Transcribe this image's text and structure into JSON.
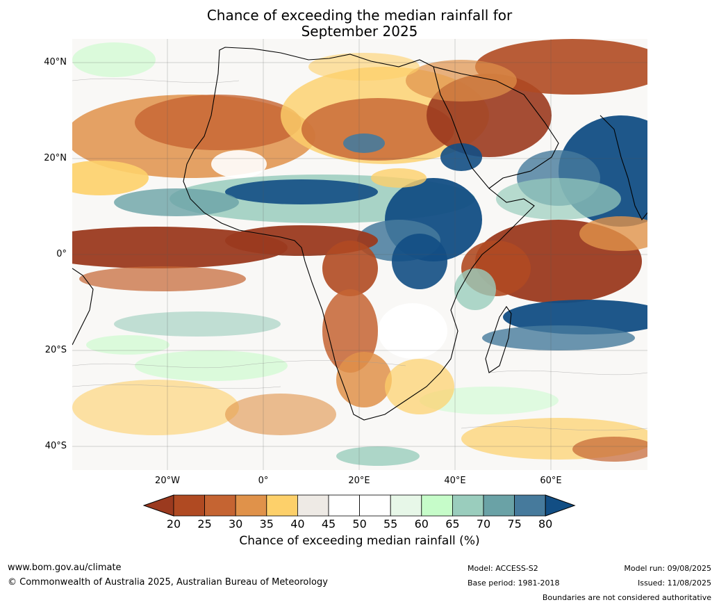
{
  "title_line1": "Chance of exceeding the median rainfall for",
  "title_line2": "September 2025",
  "lat_labels": [
    "40°N",
    "20°N",
    "0°",
    "20°S",
    "40°S"
  ],
  "lon_labels": [
    "20°W",
    "0°",
    "20°E",
    "40°E",
    "60°E"
  ],
  "colorbar": {
    "ticks": [
      "20",
      "25",
      "30",
      "35",
      "40",
      "45",
      "50",
      "55",
      "60",
      "65",
      "70",
      "75",
      "80"
    ],
    "colors": [
      "#9b3a1f",
      "#b04a22",
      "#c56432",
      "#e0924a",
      "#fdd06a",
      "#eeeae5",
      "#ffffff",
      "#ffffff",
      "#e7f7e8",
      "#c6fcc9",
      "#9acdbd",
      "#6aa2a6",
      "#467a9c",
      "#124e84"
    ],
    "label": "Chance of exceeding median rainfall (%)"
  },
  "footer": {
    "url": "www.bom.gov.au/climate",
    "copyright": "© Commonwealth of Australia 2025, Australian Bureau of Meteorology",
    "model": "Model: ACCESS-S2",
    "base_period": "Base period: 1981-2018",
    "model_run": "Model run: 09/08/2025",
    "issued": "Issued: 11/08/2025",
    "disclaimer": "Boundaries are not considered authoritative"
  }
}
